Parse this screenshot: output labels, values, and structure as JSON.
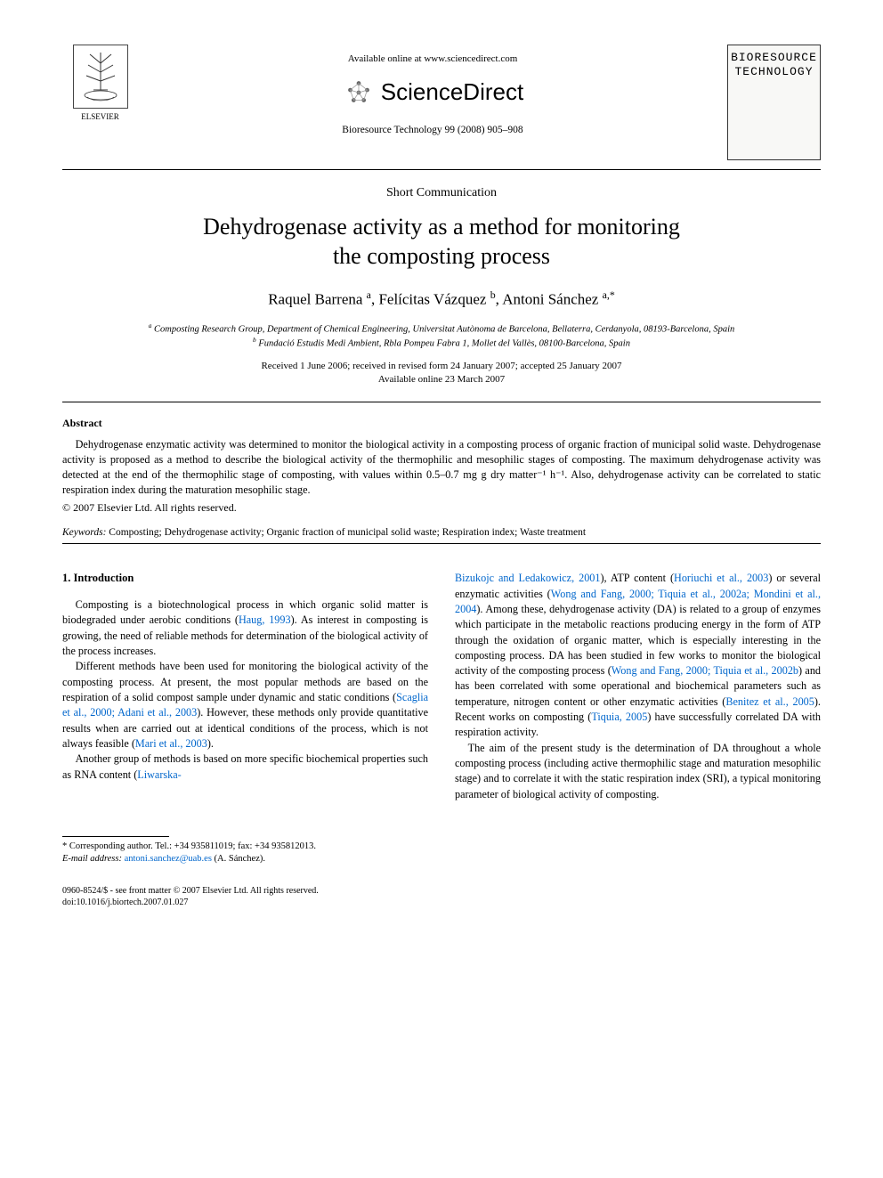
{
  "header": {
    "elsevier_label": "ELSEVIER",
    "available_text": "Available online at www.sciencedirect.com",
    "sd_brand": "ScienceDirect",
    "citation": "Bioresource Technology 99 (2008) 905–908",
    "journal_cover_line1": "BIORESOURCE",
    "journal_cover_line2": "TECHNOLOGY"
  },
  "article": {
    "type": "Short Communication",
    "title_line1": "Dehydrogenase activity as a method for monitoring",
    "title_line2": "the composting process",
    "authors_html": "Raquel Barrena <span class='sup'>a</span>, Felícitas Vázquez <span class='sup'>b</span>, Antoni Sánchez <span class='sup'>a,*</span>",
    "affiliation_a": "a Composting Research Group, Department of Chemical Engineering, Universitat Autònoma de Barcelona, Bellaterra, Cerdanyola, 08193-Barcelona, Spain",
    "affiliation_b": "b Fundació Estudis Medi Ambient, Rbla Pompeu Fabra 1, Mollet del Vallès, 08100-Barcelona, Spain",
    "dates_line1": "Received 1 June 2006; received in revised form 24 January 2007; accepted 25 January 2007",
    "dates_line2": "Available online 23 March 2007"
  },
  "abstract": {
    "heading": "Abstract",
    "text": "Dehydrogenase enzymatic activity was determined to monitor the biological activity in a composting process of organic fraction of municipal solid waste. Dehydrogenase activity is proposed as a method to describe the biological activity of the thermophilic and mesophilic stages of composting. The maximum dehydrogenase activity was detected at the end of the thermophilic stage of composting, with values within 0.5–0.7 mg g dry matter⁻¹ h⁻¹. Also, dehydrogenase activity can be correlated to static respiration index during the maturation mesophilic stage.",
    "copyright": "© 2007 Elsevier Ltd. All rights reserved."
  },
  "keywords": {
    "label": "Keywords:",
    "text": " Composting; Dehydrogenase activity; Organic fraction of municipal solid waste; Respiration index; Waste treatment"
  },
  "body": {
    "section1_heading": "1. Introduction",
    "left_p1_a": "Composting is a biotechnological process in which organic solid matter is biodegraded under aerobic conditions (",
    "left_p1_ref1": "Haug, 1993",
    "left_p1_b": "). As interest in composting is growing, the need of reliable methods for determination of the biological activity of the process increases.",
    "left_p2_a": "Different methods have been used for monitoring the biological activity of the composting process. At present, the most popular methods are based on the respiration of a solid compost sample under dynamic and static conditions (",
    "left_p2_ref1": "Scaglia et al., 2000; Adani et al., 2003",
    "left_p2_b": "). However, these methods only provide quantitative results when are carried out at identical conditions of the process, which is not always feasible (",
    "left_p2_ref2": "Mari et al., 2003",
    "left_p2_c": ").",
    "left_p3_a": "Another group of methods is based on more specific biochemical properties such as RNA content (",
    "left_p3_ref1": "Liwarska-",
    "right_p1_ref1": "Bizukojc and Ledakowicz, 2001",
    "right_p1_a": "), ATP content (",
    "right_p1_ref2": "Horiuchi et al., 2003",
    "right_p1_b": ") or several enzymatic activities (",
    "right_p1_ref3": "Wong and Fang, 2000; Tiquia et al., 2002a; Mondini et al., 2004",
    "right_p1_c": "). Among these, dehydrogenase activity (DA) is related to a group of enzymes which participate in the metabolic reactions producing energy in the form of ATP through the oxidation of organic matter, which is especially interesting in the composting process. DA has been studied in few works to monitor the biological activity of the composting process (",
    "right_p1_ref4": "Wong and Fang, 2000; Tiquia et al., 2002b",
    "right_p1_d": ") and has been correlated with some operational and biochemical parameters such as temperature, nitrogen content or other enzymatic activities (",
    "right_p1_ref5": "Benitez et al., 2005",
    "right_p1_e": "). Recent works on composting (",
    "right_p1_ref6": "Tiquia, 2005",
    "right_p1_f": ") have successfully correlated DA with respiration activity.",
    "right_p2": "The aim of the present study is the determination of DA throughout a whole composting process (including active thermophilic stage and maturation mesophilic stage) and to correlate it with the static respiration index (SRI), a typical monitoring parameter of biological activity of composting."
  },
  "footnote": {
    "corresponding": "* Corresponding author. Tel.: +34 935811019; fax: +34 935812013.",
    "email_label": "E-mail address: ",
    "email": "antoni.sanchez@uab.es",
    "email_tail": " (A. Sánchez)."
  },
  "footer": {
    "line1": "0960-8524/$ - see front matter © 2007 Elsevier Ltd. All rights reserved.",
    "line2": "doi:10.1016/j.biortech.2007.01.027"
  },
  "colors": {
    "link": "#0066cc",
    "text": "#000000",
    "bg": "#ffffff"
  }
}
